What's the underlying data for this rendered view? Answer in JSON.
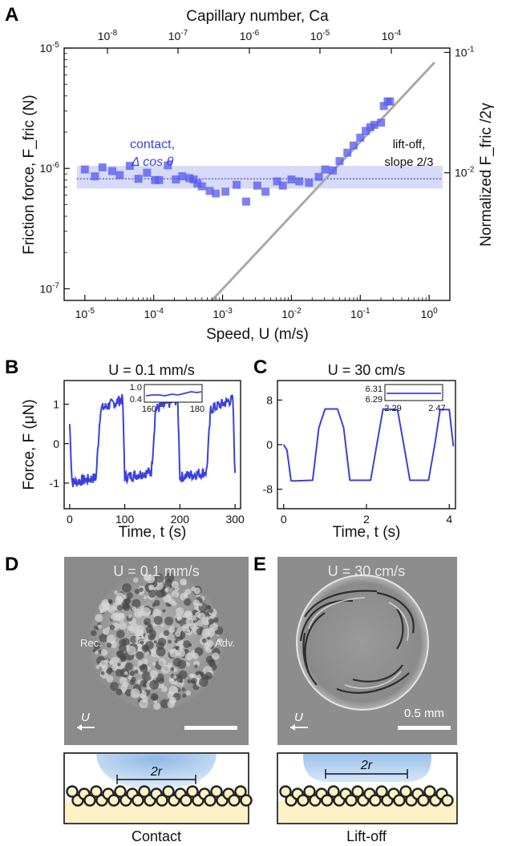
{
  "figure": {
    "panels": {
      "A": "A",
      "B": "B",
      "C": "C",
      "D": "D",
      "E": "E"
    }
  },
  "chart_data": [
    {
      "panel": "A",
      "type": "scatter",
      "x_scale": "log",
      "y_scale": "log",
      "xlabel": "Speed, U (m/s)",
      "ylabel": "Friction force, F_fric (N)",
      "top_xlabel": "Capillary number, Ca",
      "right_ylabel": "Normalized F_fric /2γ",
      "xlim": [
        5e-06,
        2
      ],
      "ylim": [
        8e-08,
        1e-05
      ],
      "x_ticks": [
        "10^-5",
        "10^-4",
        "10^-3",
        "10^-2",
        "10^-1",
        "10^0"
      ],
      "y_ticks": [
        "10^-7",
        "10^-6",
        "10^-5"
      ],
      "top_ticks": [
        "10^-8",
        "10^-7",
        "10^-6",
        "10^-5",
        "10^-4"
      ],
      "right_ticks": [
        "10^-2",
        "10^-1"
      ],
      "annotations": {
        "contact": "contact,",
        "contact2": "Δ cos θ",
        "liftoff": "lift-off,",
        "liftoff2": "slope 2/3"
      },
      "band": {
        "center": 8.2e-07,
        "low": 6.8e-07,
        "high": 1.05e-06
      },
      "fit_line": {
        "x": [
          0.0007,
          1.2
        ],
        "y": [
          8e-08,
          7.6e-06
        ]
      },
      "points": [
        [
          1e-05,
          9.8e-07
        ],
        [
          1.4e-05,
          8.6e-07
        ],
        [
          1.8e-05,
          1.02e-06
        ],
        [
          2.5e-05,
          9.5e-07
        ],
        [
          3.2e-05,
          8.8e-07
        ],
        [
          4.5e-05,
          1.05e-06
        ],
        [
          6e-05,
          8.2e-07
        ],
        [
          8e-05,
          9.2e-07
        ],
        [
          0.000105,
          8e-07
        ],
        [
          0.00012,
          8e-07
        ],
        [
          0.00016,
          1.06e-06
        ],
        [
          0.00021,
          8.1e-07
        ],
        [
          0.00026,
          8.6e-07
        ],
        [
          0.00033,
          8.3e-07
        ],
        [
          0.00038,
          8.1e-07
        ],
        [
          0.00043,
          7.5e-07
        ],
        [
          0.0005,
          7.1e-07
        ],
        [
          0.00065,
          6.5e-07
        ],
        [
          0.0008,
          6.2e-07
        ],
        [
          0.0011,
          6.4e-07
        ],
        [
          0.0016,
          7.3e-07
        ],
        [
          0.0022,
          5.3e-07
        ],
        [
          0.0032,
          7.2e-07
        ],
        [
          0.0042,
          6.4e-07
        ],
        [
          0.0062,
          7.8e-07
        ],
        [
          0.0075,
          7.2e-07
        ],
        [
          0.01,
          8.1e-07
        ],
        [
          0.013,
          7.8e-07
        ],
        [
          0.018,
          7.6e-07
        ],
        [
          0.025,
          8.5e-07
        ],
        [
          0.031,
          9.8e-07
        ],
        [
          0.04,
          9.6e-07
        ],
        [
          0.05,
          1.15e-06
        ],
        [
          0.065,
          1.35e-06
        ],
        [
          0.08,
          1.55e-06
        ],
        [
          0.1,
          1.8e-06
        ],
        [
          0.12,
          2.05e-06
        ],
        [
          0.14,
          2.2e-06
        ],
        [
          0.16,
          2.3e-06
        ],
        [
          0.2,
          2.4e-06
        ],
        [
          0.22,
          3.3e-06
        ],
        [
          0.25,
          3.6e-06
        ],
        [
          0.27,
          3.6e-06
        ]
      ]
    },
    {
      "panel": "B",
      "type": "line",
      "title": "U = 0.1 mm/s",
      "xlabel": "Time, t (s)",
      "ylabel": "Force, F (μN)",
      "xlim": [
        -10,
        310
      ],
      "ylim": [
        -1.65,
        1.6
      ],
      "x_ticks": [
        "0",
        "100",
        "200",
        "300"
      ],
      "y_ticks": [
        "-1",
        "0",
        "1"
      ],
      "inset": {
        "y_ticks": [
          "1.0",
          "0.4"
        ],
        "x_ticks": [
          "160",
          "180"
        ]
      }
    },
    {
      "panel": "C",
      "type": "line",
      "title": "U = 30 cm/s",
      "xlabel": "Time, t (s)",
      "xlim": [
        -0.15,
        4.15
      ],
      "ylim": [
        -11.5,
        11.5
      ],
      "x_ticks": [
        "0",
        "2",
        "4"
      ],
      "y_ticks": [
        "-8",
        "0",
        "8"
      ],
      "inset": {
        "y_ticks": [
          "6.31",
          "6.29"
        ],
        "x_ticks": [
          "2.29",
          "2.47"
        ]
      }
    }
  ],
  "images": {
    "D": {
      "title": "U = 0.1 mm/s",
      "rec": "Rec.",
      "adv": "Adv.",
      "arrow_label": "U"
    },
    "E": {
      "title": "U = 30 cm/s",
      "scale": "0.5 mm",
      "arrow_label": "U"
    }
  },
  "schematics": {
    "D": {
      "label": "2r",
      "caption": "Contact"
    },
    "E": {
      "label": "2r",
      "caption": "Lift-off"
    }
  }
}
